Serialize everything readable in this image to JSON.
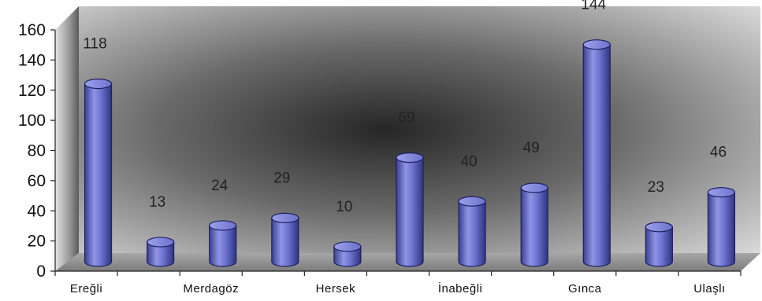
{
  "chart_data": {
    "type": "bar",
    "style": "3d-cylinder",
    "title": "",
    "xlabel": "",
    "ylabel": "",
    "ylim": [
      0,
      160
    ],
    "yticks": [
      0,
      20,
      40,
      60,
      80,
      100,
      120,
      140,
      160
    ],
    "categories": [
      "Ereğli",
      "",
      "Merdagöz",
      "",
      "Hersek",
      "",
      "İnabeğli",
      "",
      "Gınca",
      "",
      "Ulaşlı"
    ],
    "values": [
      118,
      13,
      24,
      29,
      10,
      69,
      40,
      49,
      144,
      23,
      46
    ],
    "colors": {
      "bar": "#6e74cf",
      "bar_dark": "#3b3f92",
      "bar_light": "#aeb2f0",
      "wall_center": "#2a2a2a",
      "wall_edge": "#d8d8d8",
      "floor": "#8f8f8f"
    },
    "grid": false,
    "legend": "none"
  }
}
